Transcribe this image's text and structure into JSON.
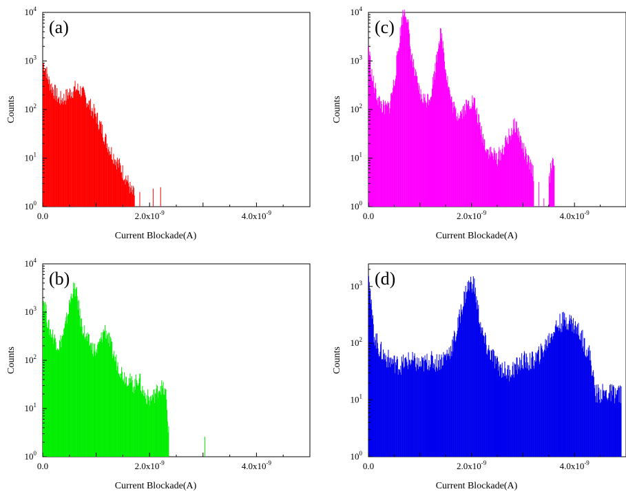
{
  "chart_data": [
    {
      "type": "bar",
      "panel_label": "(a)",
      "color": "#ff0000",
      "xlabel": "Current Blockade(A)",
      "ylabel": "Counts",
      "y_scale": "log",
      "xlim": [
        0,
        5e-09
      ],
      "ylim": [
        1,
        10000
      ],
      "x_tick_labels": [
        {
          "value": 0,
          "label": "0.0"
        },
        {
          "value": 2e-09,
          "label": "2.0x10",
          "exp": "-9"
        },
        {
          "value": 4e-09,
          "label": "4.0x10",
          "exp": "-9"
        }
      ],
      "y_tick_labels": [
        {
          "value": 1,
          "label": "10",
          "exp": "0"
        },
        {
          "value": 10,
          "label": "10",
          "exp": "1"
        },
        {
          "value": 100,
          "label": "10",
          "exp": "2"
        },
        {
          "value": 1000,
          "label": "10",
          "exp": "3"
        },
        {
          "value": 10000,
          "label": "10",
          "exp": "4"
        }
      ],
      "bin_width": 1e-11,
      "x": [
        0,
        5e-11,
        1e-10,
        2e-10,
        3e-10,
        4e-10,
        5e-10,
        6e-10,
        7e-10,
        8e-10,
        9e-10,
        1e-09,
        1.1e-09,
        1.2e-09,
        1.3e-09,
        1.4e-09,
        1.5e-09,
        1.55e-09,
        1.6e-09,
        1.65e-09,
        1.7e-09,
        1.8e-09,
        2.05e-09,
        2.2e-09
      ],
      "values": [
        900,
        700,
        400,
        250,
        160,
        170,
        220,
        270,
        250,
        170,
        110,
        70,
        40,
        20,
        12,
        8,
        5,
        4,
        3,
        2,
        1.8,
        2,
        2,
        2
      ]
    },
    {
      "type": "bar",
      "panel_label": "(b)",
      "color": "#00ee00",
      "xlabel": "Current Blockade(A)",
      "ylabel": "Counts",
      "y_scale": "log",
      "xlim": [
        0,
        5e-09
      ],
      "ylim": [
        1,
        10000
      ],
      "x_tick_labels": [
        {
          "value": 0,
          "label": "0.0"
        },
        {
          "value": 2e-09,
          "label": "2.0x10",
          "exp": "-9"
        },
        {
          "value": 4e-09,
          "label": "4.0x10",
          "exp": "-9"
        }
      ],
      "y_tick_labels": [
        {
          "value": 1,
          "label": "10",
          "exp": "0"
        },
        {
          "value": 10,
          "label": "10",
          "exp": "1"
        },
        {
          "value": 100,
          "label": "10",
          "exp": "2"
        },
        {
          "value": 1000,
          "label": "10",
          "exp": "3"
        },
        {
          "value": 10000,
          "label": "10",
          "exp": "4"
        }
      ],
      "bin_width": 1e-11,
      "x": [
        0,
        5e-11,
        1e-10,
        2e-10,
        3e-10,
        4e-10,
        5e-10,
        5.5e-10,
        6e-10,
        6.5e-10,
        7e-10,
        8e-10,
        9e-10,
        1e-09,
        1.1e-09,
        1.15e-09,
        1.2e-09,
        1.3e-09,
        1.4e-09,
        1.5e-09,
        1.6e-09,
        1.7e-09,
        1.8e-09,
        1.85e-09,
        1.9e-09,
        2e-09,
        2.1e-09,
        2.2e-09,
        2.3e-09,
        2.35e-09,
        3.03e-09
      ],
      "values": [
        2000,
        1200,
        500,
        300,
        200,
        400,
        1500,
        2800,
        3000,
        1800,
        700,
        300,
        200,
        150,
        300,
        450,
        350,
        150,
        80,
        50,
        40,
        30,
        45,
        25,
        20,
        15,
        20,
        30,
        20,
        3,
        3
      ]
    },
    {
      "type": "bar",
      "panel_label": "(c)",
      "color": "#ff00ff",
      "xlabel": "Current Blockade(A)",
      "ylabel": "Counts",
      "y_scale": "log",
      "xlim": [
        0,
        5e-09
      ],
      "ylim": [
        1,
        10000
      ],
      "x_tick_labels": [
        {
          "value": 0,
          "label": "0.0"
        },
        {
          "value": 2e-09,
          "label": "2.0x10",
          "exp": "-9"
        },
        {
          "value": 4e-09,
          "label": "4.0x10",
          "exp": "-9"
        }
      ],
      "y_tick_labels": [
        {
          "value": 1,
          "label": "10",
          "exp": "0"
        },
        {
          "value": 10,
          "label": "10",
          "exp": "1"
        },
        {
          "value": 100,
          "label": "10",
          "exp": "2"
        },
        {
          "value": 1000,
          "label": "10",
          "exp": "3"
        },
        {
          "value": 10000,
          "label": "10",
          "exp": "4"
        }
      ],
      "bin_width": 1e-11,
      "x": [
        0,
        5e-11,
        1e-10,
        2e-10,
        3e-10,
        4e-10,
        5e-10,
        6e-10,
        6.5e-10,
        7e-10,
        7.5e-10,
        8e-10,
        9e-10,
        1e-09,
        1.1e-09,
        1.2e-09,
        1.3e-09,
        1.35e-09,
        1.4e-09,
        1.45e-09,
        1.5e-09,
        1.6e-09,
        1.7e-09,
        1.8e-09,
        1.9e-09,
        2e-09,
        2.05e-09,
        2.1e-09,
        2.2e-09,
        2.3e-09,
        2.4e-09,
        2.5e-09,
        2.6e-09,
        2.7e-09,
        2.8e-09,
        2.85e-09,
        2.9e-09,
        3e-09,
        3.1e-09,
        3.2e-09,
        3.3e-09,
        3.4e-09,
        3.5e-09,
        3.55e-09,
        3.6e-09
      ],
      "values": [
        2000,
        600,
        300,
        150,
        100,
        120,
        400,
        3000,
        8000,
        11000,
        8000,
        2000,
        500,
        200,
        150,
        200,
        800,
        2500,
        3500,
        2000,
        600,
        150,
        80,
        90,
        120,
        150,
        140,
        80,
        30,
        15,
        12,
        10,
        15,
        25,
        40,
        50,
        35,
        15,
        8,
        5,
        3,
        2,
        3,
        8,
        10
      ]
    },
    {
      "type": "bar",
      "panel_label": "(d)",
      "color": "#0000ee",
      "xlabel": "Current Blockade(A)",
      "ylabel": "Counts",
      "y_scale": "log",
      "xlim": [
        0,
        5e-09
      ],
      "ylim": [
        1,
        2500
      ],
      "x_tick_labels": [
        {
          "value": 0,
          "label": "0.0"
        },
        {
          "value": 2e-09,
          "label": "2.0x10",
          "exp": "-9"
        },
        {
          "value": 4e-09,
          "label": "4.0x10",
          "exp": "-9"
        }
      ],
      "y_tick_labels": [
        {
          "value": 1,
          "label": "10",
          "exp": "0"
        },
        {
          "value": 10,
          "label": "10",
          "exp": "1"
        },
        {
          "value": 100,
          "label": "10",
          "exp": "2"
        },
        {
          "value": 1000,
          "label": "10",
          "exp": "3"
        }
      ],
      "bin_width": 1e-11,
      "x": [
        0,
        5e-11,
        1e-10,
        2e-10,
        3e-10,
        4e-10,
        5e-10,
        6e-10,
        7e-10,
        8e-10,
        9e-10,
        1e-09,
        1.1e-09,
        1.2e-09,
        1.3e-09,
        1.4e-09,
        1.5e-09,
        1.6e-09,
        1.7e-09,
        1.8e-09,
        1.9e-09,
        2e-09,
        2.05e-09,
        2.1e-09,
        2.2e-09,
        2.3e-09,
        2.4e-09,
        2.5e-09,
        2.6e-09,
        2.7e-09,
        2.8e-09,
        2.9e-09,
        3e-09,
        3.1e-09,
        3.2e-09,
        3.3e-09,
        3.4e-09,
        3.5e-09,
        3.6e-09,
        3.7e-09,
        3.8e-09,
        3.9e-09,
        4e-09,
        4.1e-09,
        4.2e-09,
        4.3e-09,
        4.4e-09,
        4.5e-09,
        4.6e-09,
        4.7e-09,
        4.8e-09,
        4.9e-09
      ],
      "values": [
        2200,
        400,
        150,
        80,
        60,
        50,
        45,
        40,
        45,
        50,
        45,
        40,
        45,
        50,
        45,
        50,
        60,
        80,
        150,
        400,
        900,
        1200,
        1000,
        500,
        150,
        80,
        60,
        40,
        35,
        30,
        35,
        40,
        50,
        45,
        50,
        60,
        80,
        120,
        180,
        220,
        250,
        250,
        200,
        150,
        90,
        60,
        13,
        13,
        13,
        13,
        13,
        13
      ]
    }
  ]
}
